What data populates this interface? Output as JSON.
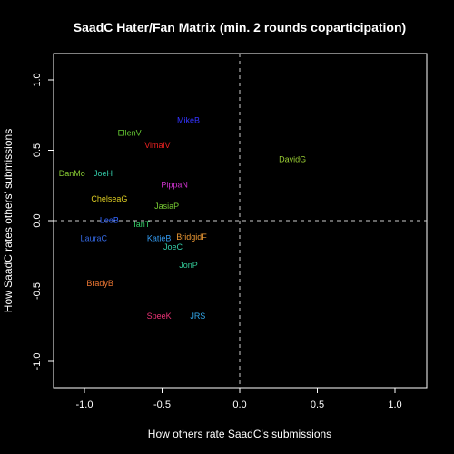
{
  "chart_data": {
    "type": "scatter",
    "title": "SaadC Hater/Fan Matrix (min. 2 rounds coparticipation)",
    "xlabel": "How others rate SaadC's submissions",
    "ylabel": "How SaadC rates others' submissions",
    "xlim": [
      -1.2,
      1.2
    ],
    "ylim": [
      -1.2,
      1.2
    ],
    "x_ticks": [
      -1.0,
      -0.5,
      0.0,
      0.5,
      1.0
    ],
    "x_tick_labels": [
      "-1.0",
      "-0.5",
      "0.0",
      "0.5",
      "1.0"
    ],
    "y_ticks": [
      -1.0,
      -0.5,
      0.0,
      0.5,
      1.0
    ],
    "y_tick_labels": [
      "-1.0",
      "-0.5",
      "0.0",
      "0.5",
      "1.0"
    ],
    "reference_lines": {
      "x": 0,
      "y": 0,
      "style": "dashed",
      "color": "#cccccc"
    },
    "grid": false,
    "points": [
      {
        "label": "MikeB",
        "x": -0.33,
        "y": 0.71,
        "color": "#3333ff"
      },
      {
        "label": "EllenV",
        "x": -0.71,
        "y": 0.62,
        "color": "#66cc33"
      },
      {
        "label": "VimalV",
        "x": -0.53,
        "y": 0.53,
        "color": "#ee2222"
      },
      {
        "label": "DavidG",
        "x": 0.34,
        "y": 0.43,
        "color": "#99cc33"
      },
      {
        "label": "DanMo",
        "x": -1.08,
        "y": 0.33,
        "color": "#88cc33"
      },
      {
        "label": "JoeH",
        "x": -0.88,
        "y": 0.33,
        "color": "#33ccaa"
      },
      {
        "label": "PippaN",
        "x": -0.42,
        "y": 0.25,
        "color": "#cc33cc"
      },
      {
        "label": "ChelseaG",
        "x": -0.84,
        "y": 0.15,
        "color": "#ddcc22"
      },
      {
        "label": "JasiaP",
        "x": -0.47,
        "y": 0.1,
        "color": "#77cc33"
      },
      {
        "label": "LeeB",
        "x": -0.84,
        "y": 0.0,
        "color": "#3366ff"
      },
      {
        "label": "IanT",
        "x": -0.63,
        "y": -0.03,
        "color": "#33cc66"
      },
      {
        "label": "LauraC",
        "x": -0.94,
        "y": -0.13,
        "color": "#3366dd"
      },
      {
        "label": "KatieB",
        "x": -0.52,
        "y": -0.13,
        "color": "#3399ee"
      },
      {
        "label": "BridgidF",
        "x": -0.31,
        "y": -0.12,
        "color": "#ee9933"
      },
      {
        "label": "JoeC",
        "x": -0.43,
        "y": -0.19,
        "color": "#33ccaa"
      },
      {
        "label": "JonP",
        "x": -0.33,
        "y": -0.32,
        "color": "#33cc99"
      },
      {
        "label": "BradyB",
        "x": -0.9,
        "y": -0.45,
        "color": "#ee7733"
      },
      {
        "label": "SpeeK",
        "x": -0.52,
        "y": -0.68,
        "color": "#ee3377"
      },
      {
        "label": "JRS",
        "x": -0.27,
        "y": -0.68,
        "color": "#33aaee"
      }
    ]
  }
}
